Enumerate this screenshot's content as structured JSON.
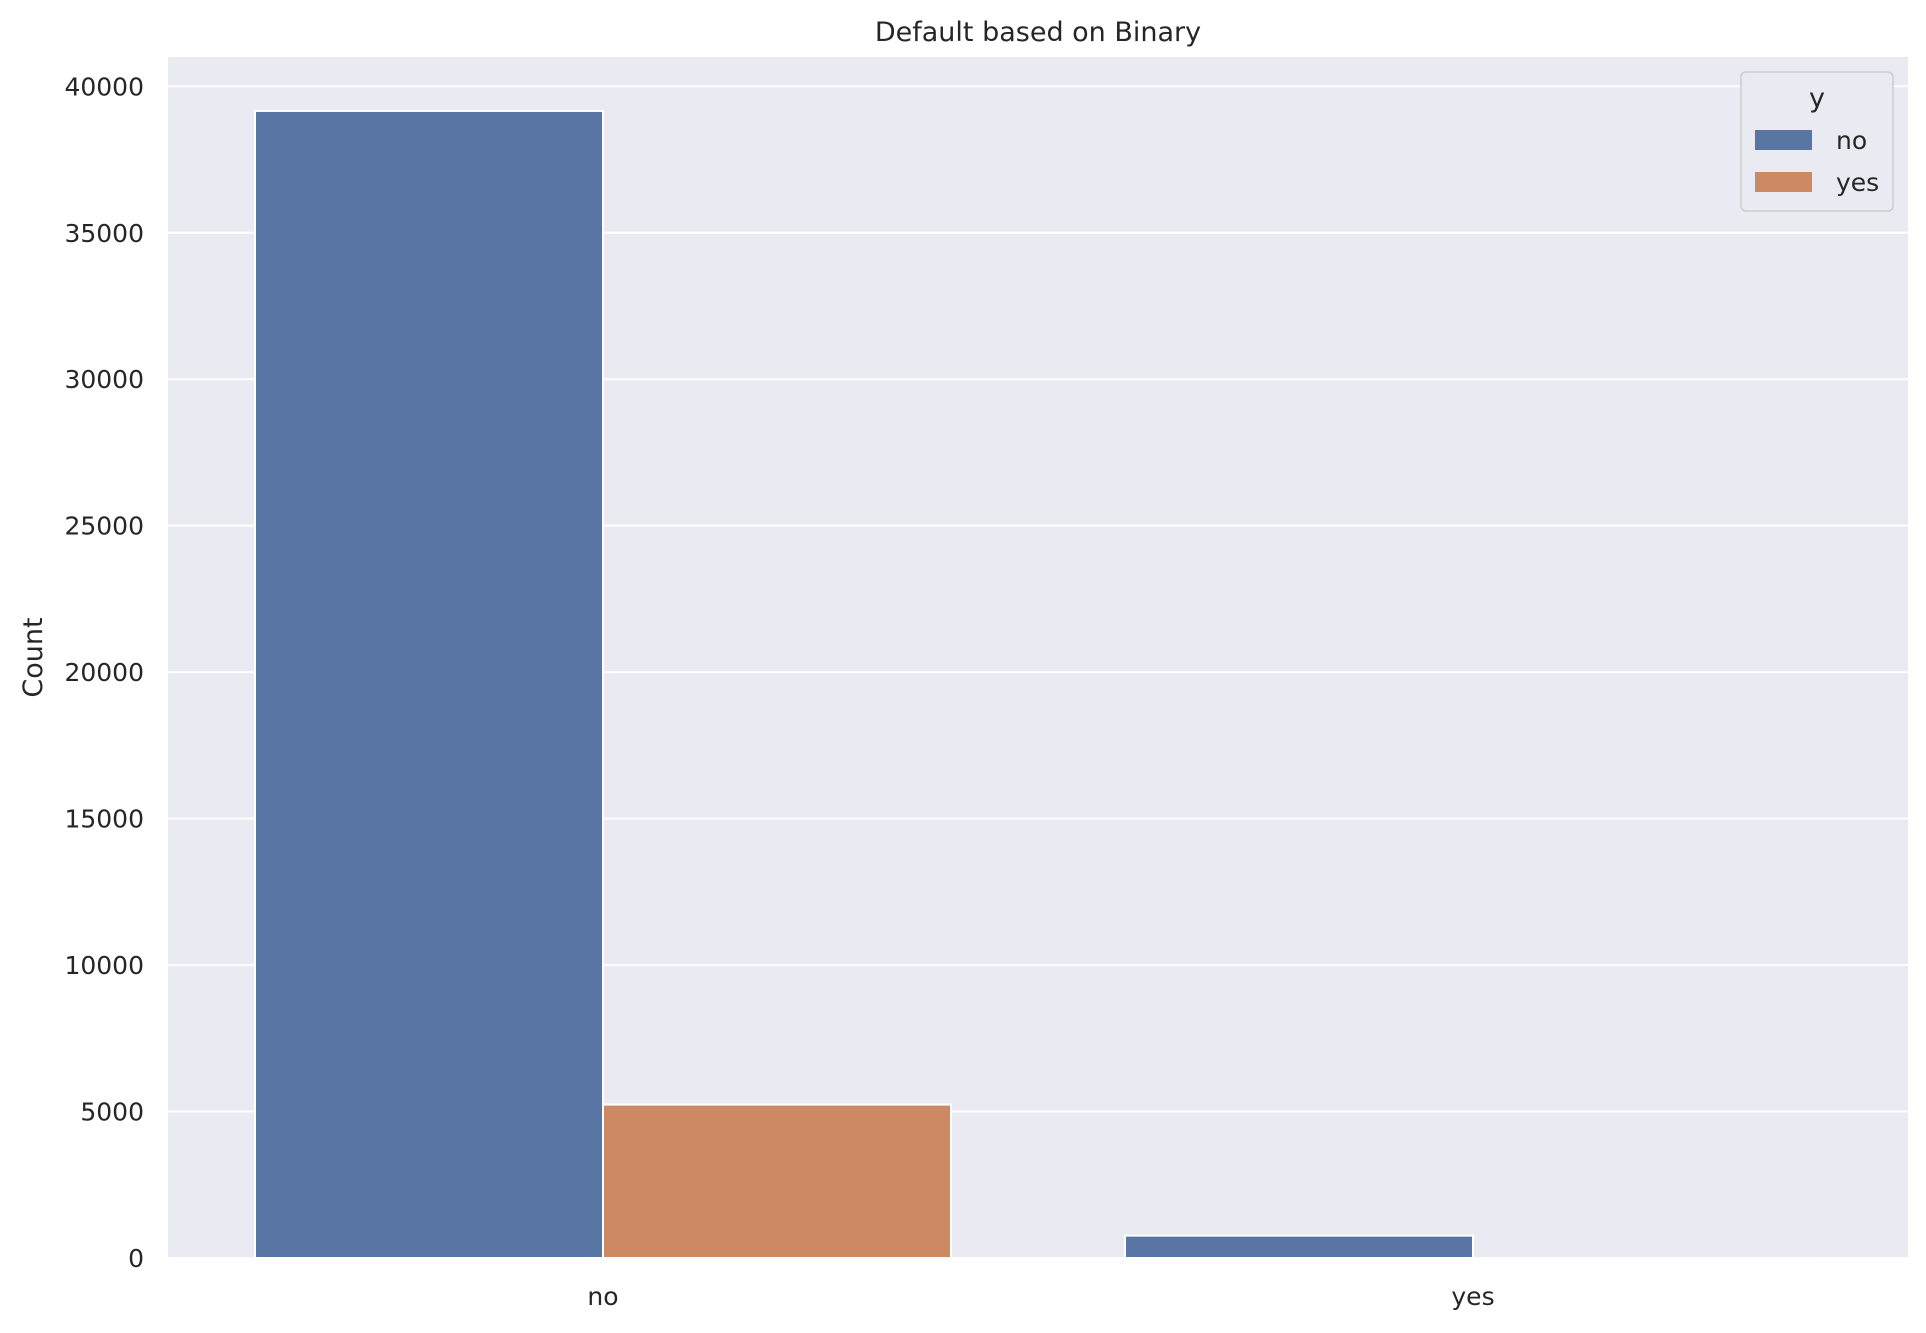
{
  "chart_data": {
    "type": "bar",
    "title": "Default based on Binary",
    "xlabel": "",
    "ylabel": "Count",
    "categories": [
      "no",
      "yes"
    ],
    "series": [
      {
        "name": "no",
        "values": [
          39159,
          763
        ]
      },
      {
        "name": "yes",
        "values": [
          5237,
          2
        ]
      }
    ],
    "ylim": [
      0,
      41000
    ],
    "yticks": [
      0,
      5000,
      10000,
      15000,
      20000,
      25000,
      30000,
      35000,
      40000
    ],
    "grid": true,
    "legend": {
      "title": "y",
      "placement": "top-right",
      "entries": [
        "no",
        "yes"
      ]
    },
    "colors": {
      "series": [
        "#5975a4",
        "#cc8963"
      ],
      "background": "#eaeaf2",
      "grid": "#ffffff",
      "text": "#262626"
    }
  }
}
